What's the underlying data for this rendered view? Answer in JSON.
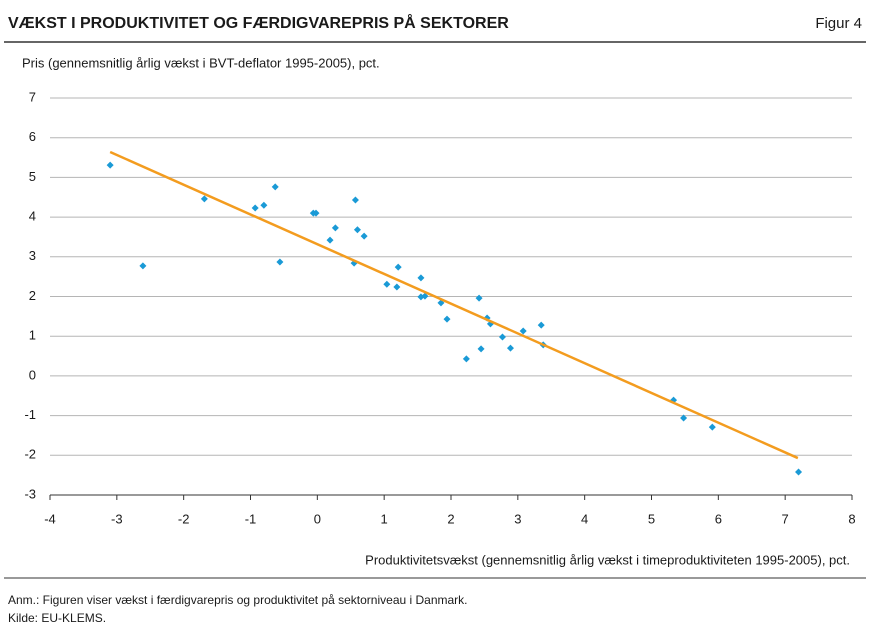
{
  "chart_data": {
    "type": "scatter",
    "title": "VÆKST I PRODUKTIVITET OG FÆRDIGVAREPRIS PÅ SEKTORER",
    "figure_label": "Figur 4",
    "ylabel": "Pris (gennemsnitlig årlig vækst i BVT-deflator 1995-2005), pct.",
    "xlabel": "Produktivitetsvækst (gennemsnitlig årlig vækst i timeproduktiviteten 1995-2005), pct.",
    "x": [
      -3.1,
      -2.61,
      -1.69,
      -0.93,
      -0.8,
      -0.63,
      -0.56,
      -0.06,
      -0.02,
      0.19,
      0.27,
      0.57,
      0.6,
      0.7,
      0.55,
      1.04,
      1.19,
      1.21,
      1.55,
      1.55,
      1.61,
      1.85,
      1.94,
      2.23,
      2.42,
      2.45,
      2.54,
      2.59,
      2.77,
      2.89,
      3.08,
      3.35,
      3.38,
      5.33,
      5.48,
      5.91,
      7.2
    ],
    "values": [
      5.31,
      2.77,
      4.46,
      4.23,
      4.3,
      4.76,
      2.87,
      4.1,
      4.1,
      3.42,
      3.73,
      4.43,
      3.68,
      3.52,
      2.84,
      2.31,
      2.24,
      2.74,
      2.47,
      1.99,
      2.01,
      1.84,
      1.43,
      0.43,
      1.96,
      0.68,
      1.46,
      1.31,
      0.98,
      0.7,
      1.13,
      1.28,
      0.78,
      -0.61,
      -1.06,
      -1.29,
      -2.42
    ],
    "color": "#1a9ad6",
    "trendline": {
      "x": [
        -3.1,
        7.19
      ],
      "values": [
        5.64,
        -2.07
      ],
      "color": "#f39c1f"
    },
    "xlim": [
      -4,
      8
    ],
    "xticks": [
      -4,
      -3,
      -2,
      -1,
      0,
      1,
      2,
      3,
      4,
      5,
      6,
      7,
      8
    ],
    "ylim": [
      -3,
      7
    ],
    "yticks": [
      -3,
      -2,
      -1,
      0,
      1,
      2,
      3,
      4,
      5,
      6,
      7
    ],
    "grid": true,
    "notes": [
      "Anm.: Figuren viser vækst i færdigvarepris og produktivitet på sektorniveau i Danmark.",
      "Kilde: EU-KLEMS."
    ]
  }
}
